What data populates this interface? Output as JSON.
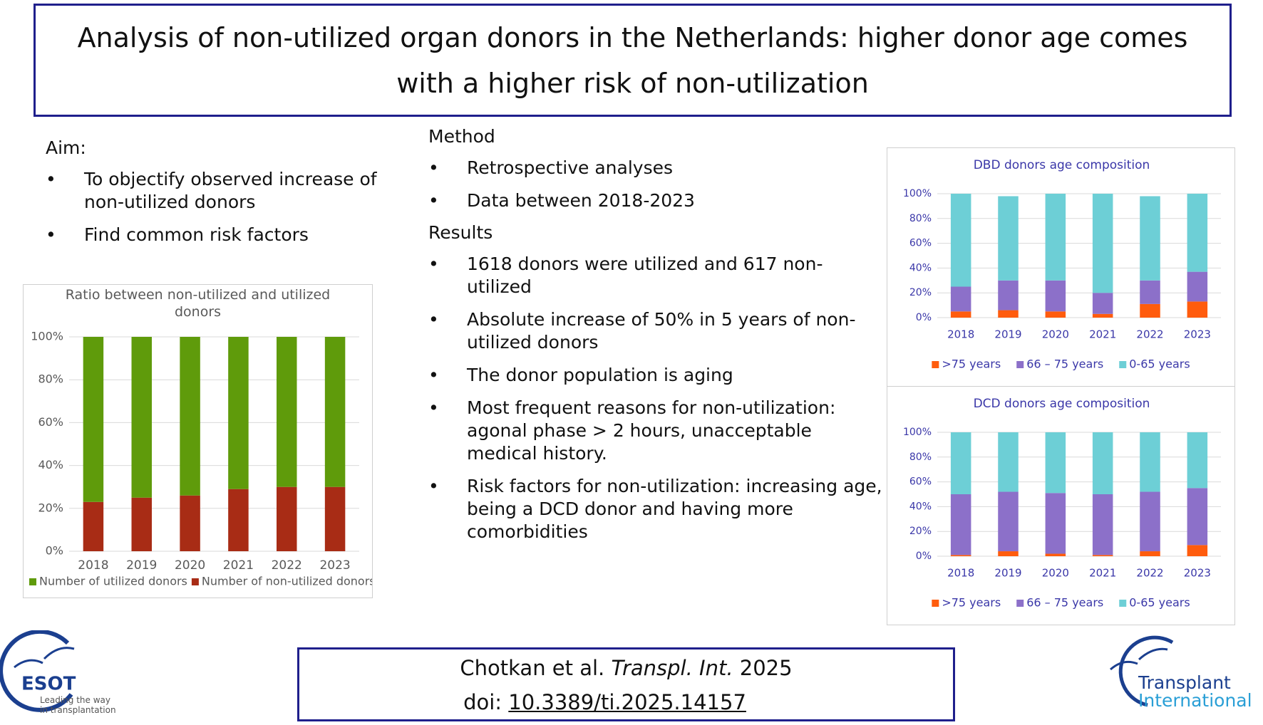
{
  "header": {
    "title": "Analysis of non-utilized organ donors in the Netherlands: higher donor age comes with a higher risk of non-utilization"
  },
  "aim": {
    "heading": "Aim:",
    "items": [
      "To objectify observed increase of non-utilized donors",
      "Find common risk factors"
    ]
  },
  "method": {
    "heading": "Method",
    "items": [
      "Retrospective analyses",
      "Data between 2018-2023"
    ]
  },
  "results": {
    "heading": "Results",
    "items": [
      "1618 donors were utilized and 617 non-utilized",
      "Absolute increase of 50% in 5 years of non-utilized donors",
      "The donor population is aging",
      "Most frequent reasons for non-utilization: agonal phase > 2 hours, unacceptable medical history.",
      "Risk factors for non-utilization: increasing age, being a DCD donor and having more comorbidities"
    ]
  },
  "citation": {
    "authors": "Chotkan et al.",
    "journal": "Transpl. Int.",
    "year": "2025",
    "doi_label": "doi:",
    "doi": "10.3389/ti.2025.14157"
  },
  "logos": {
    "esot": "ESOT",
    "esot_tagline": "Leading the way in transplantation",
    "journal_line1": "Transplant",
    "journal_line2": "International"
  },
  "chart_data": [
    {
      "type": "stacked_bar",
      "title": "Ratio between non-utilized and utilized donors",
      "categories": [
        "2018",
        "2019",
        "2020",
        "2021",
        "2022",
        "2023"
      ],
      "series": [
        {
          "name": "Number of utilized donors",
          "color": "#5f9b0b",
          "values": [
            77,
            75,
            74,
            71,
            70,
            70
          ]
        },
        {
          "name": "Number of non-utilized donors",
          "color": "#a82c15",
          "values": [
            23,
            25,
            26,
            29,
            30,
            30
          ]
        }
      ],
      "ylim": [
        0,
        100
      ],
      "yticks": [
        {
          "value": 0,
          "label": "0%"
        },
        {
          "value": 20,
          "label": "20%"
        },
        {
          "value": 40,
          "label": "40%"
        },
        {
          "value": 60,
          "label": "60%"
        },
        {
          "value": 80,
          "label": "80%"
        },
        {
          "value": 100,
          "label": "100%"
        }
      ],
      "grid": true,
      "legend": "bottom"
    },
    {
      "type": "stacked_bar",
      "title": "DBD donors age composition",
      "categories": [
        "2018",
        "2019",
        "2020",
        "2021",
        "2022",
        "2023"
      ],
      "series": [
        {
          "name": ">75 years",
          "color": "#ff5c0d",
          "values": [
            5,
            6,
            5,
            3,
            11,
            13
          ]
        },
        {
          "name": "66 – 75 years",
          "color": "#8c70c9",
          "values": [
            20,
            24,
            25,
            17,
            19,
            24
          ]
        },
        {
          "name": "0-65 years",
          "color": "#6dcfd6",
          "values": [
            75,
            68,
            70,
            80,
            68,
            63
          ]
        }
      ],
      "ylim": [
        0,
        100
      ],
      "yticks": [
        {
          "value": 0,
          "label": "0%"
        },
        {
          "value": 20,
          "label": "20%"
        },
        {
          "value": 40,
          "label": "40%"
        },
        {
          "value": 60,
          "label": "60%"
        },
        {
          "value": 80,
          "label": "80%"
        },
        {
          "value": 100,
          "label": "100%"
        }
      ],
      "grid": true,
      "legend": "bottom"
    },
    {
      "type": "stacked_bar",
      "title": "DCD donors age composition",
      "categories": [
        "2018",
        "2019",
        "2020",
        "2021",
        "2022",
        "2023"
      ],
      "series": [
        {
          "name": ">75 years",
          "color": "#ff5c0d",
          "values": [
            1,
            4,
            2,
            1,
            4,
            9
          ]
        },
        {
          "name": "66 – 75 years",
          "color": "#8c70c9",
          "values": [
            49,
            48,
            49,
            49,
            48,
            46
          ]
        },
        {
          "name": "0-65 years",
          "color": "#6dcfd6",
          "values": [
            50,
            48,
            49,
            50,
            48,
            45
          ]
        }
      ],
      "ylim": [
        0,
        100
      ],
      "yticks": [
        {
          "value": 0,
          "label": "0%"
        },
        {
          "value": 20,
          "label": "20%"
        },
        {
          "value": 40,
          "label": "40%"
        },
        {
          "value": 60,
          "label": "60%"
        },
        {
          "value": 80,
          "label": "80%"
        },
        {
          "value": 100,
          "label": "100%"
        }
      ],
      "grid": true,
      "legend": "bottom"
    }
  ]
}
